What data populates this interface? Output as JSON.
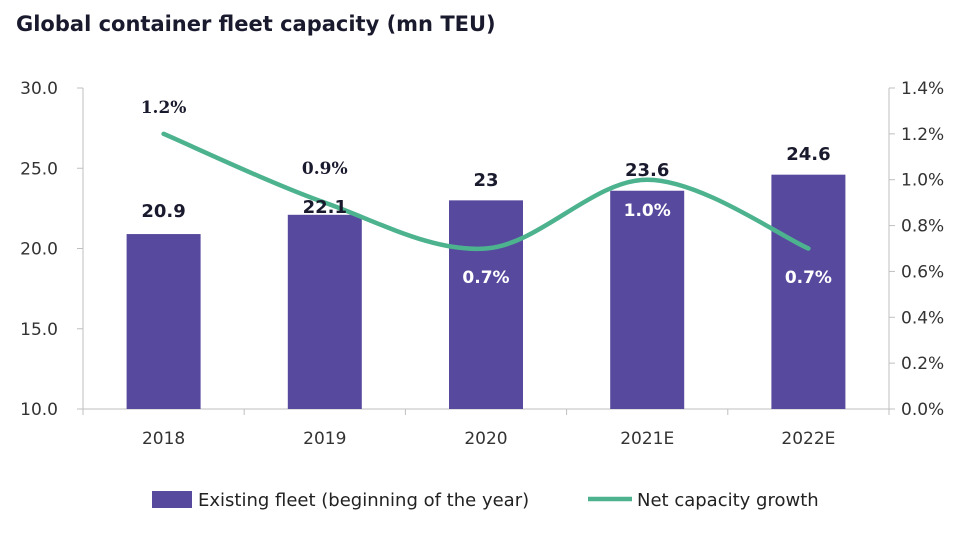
{
  "chart_data": {
    "type": "bar",
    "title": "Global container fleet capacity (mn TEU)",
    "categories": [
      "2018",
      "2019",
      "2020",
      "2021E",
      "2022E"
    ],
    "series": [
      {
        "name": "Existing fleet (beginning of the year)",
        "type": "bar",
        "axis": "left",
        "values": [
          20.9,
          22.1,
          23,
          23.6,
          24.6
        ],
        "labels": [
          "20.9",
          "22.1",
          "23",
          "23.6",
          "24.6"
        ],
        "color": "#574a9e"
      },
      {
        "name": "Net capacity growth",
        "type": "line",
        "axis": "right",
        "values": [
          0.012,
          0.009,
          0.007,
          0.01,
          0.007
        ],
        "labels": [
          "1.2%",
          "0.9%",
          "0.7%",
          "1.0%",
          "0.7%"
        ],
        "color": "#4db38f"
      }
    ],
    "y_left": {
      "ylim": [
        10,
        30
      ],
      "ticks": [
        10,
        15,
        20,
        25,
        30
      ],
      "tick_labels": [
        "10.0",
        "15.0",
        "20.0",
        "25.0",
        "30.0"
      ]
    },
    "y_right": {
      "ylim": [
        0,
        0.014
      ],
      "ticks": [
        0,
        0.002,
        0.004,
        0.006,
        0.008,
        0.01,
        0.012,
        0.014
      ],
      "tick_labels": [
        "0.0%",
        "0.2%",
        "0.4%",
        "0.6%",
        "0.8%",
        "1.0%",
        "1.2%",
        "1.4%"
      ]
    },
    "grid": false,
    "legend_position": "bottom"
  }
}
